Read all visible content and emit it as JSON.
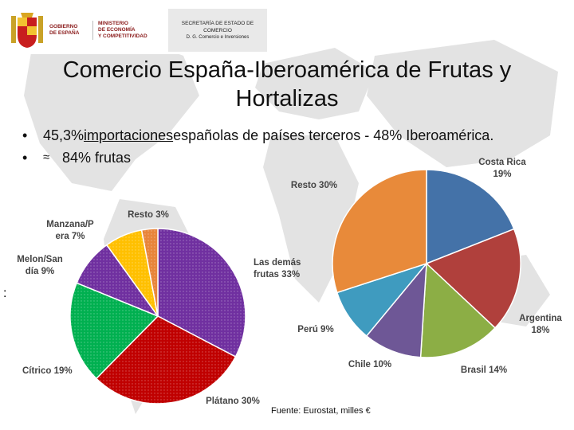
{
  "header": {
    "gobierno": [
      "GOBIERNO",
      "DE ESPAÑA"
    ],
    "ministerio": [
      "MINISTERIO",
      "DE ECONOMÍA",
      "Y COMPETITIVIDAD"
    ],
    "secretaria": [
      "SECRETARÍA DE ESTADO DE",
      "COMERCIO"
    ],
    "direccion": "D. G. Comercio e Inversiones"
  },
  "title": [
    "Comercio España-Iberoamérica de Frutas y",
    "Hortalizas"
  ],
  "bullets": {
    "b1_prefix": "45,3% ",
    "b1_underlined": "importaciones",
    "b1_suffix": " españolas de países terceros - 48% Iberoamérica.",
    "b2_symbol": "≈",
    "b2_text": "84% frutas"
  },
  "colon": ":",
  "source": "Fuente: Eurostat, milles €",
  "chart_data": [
    {
      "type": "pie",
      "slices": [
        {
          "label": [
            "Las demás",
            "frutas"
          ],
          "pct_label": "33%",
          "value": 33,
          "color": "#7030a0"
        },
        {
          "label": [
            "Plátano"
          ],
          "pct_label": "30%",
          "value": 30,
          "color": "#c00000"
        },
        {
          "label": [
            "Cítrico"
          ],
          "pct_label": "19%",
          "value": 19,
          "color": "#00b050"
        },
        {
          "label": [
            "Melon/San",
            "día"
          ],
          "pct_label": "9%",
          "value": 9,
          "color": "#7030a0"
        },
        {
          "label": [
            "Manzana/P",
            "era"
          ],
          "pct_label": "7%",
          "value": 7,
          "color": "#ffc000"
        },
        {
          "label": [
            "Resto"
          ],
          "pct_label": "3%",
          "value": 3,
          "color": "#e8853a"
        }
      ]
    },
    {
      "type": "pie",
      "slices": [
        {
          "label": [
            "Costa Rica"
          ],
          "pct_label": "19%",
          "value": 19,
          "color": "#4472a8"
        },
        {
          "label": [
            "Argentina"
          ],
          "pct_label": "18%",
          "value": 18,
          "color": "#b0403c"
        },
        {
          "label": [
            "Brasil"
          ],
          "pct_label": "14%",
          "value": 14,
          "color": "#8cae45"
        },
        {
          "label": [
            "Chile"
          ],
          "pct_label": "10%",
          "value": 10,
          "color": "#6e5796"
        },
        {
          "label": [
            "Perú"
          ],
          "pct_label": "9%",
          "value": 9,
          "color": "#3f9bbf"
        },
        {
          "label": [
            "Resto"
          ],
          "pct_label": "30%",
          "value": 30,
          "color": "#e88a3a"
        }
      ]
    }
  ]
}
